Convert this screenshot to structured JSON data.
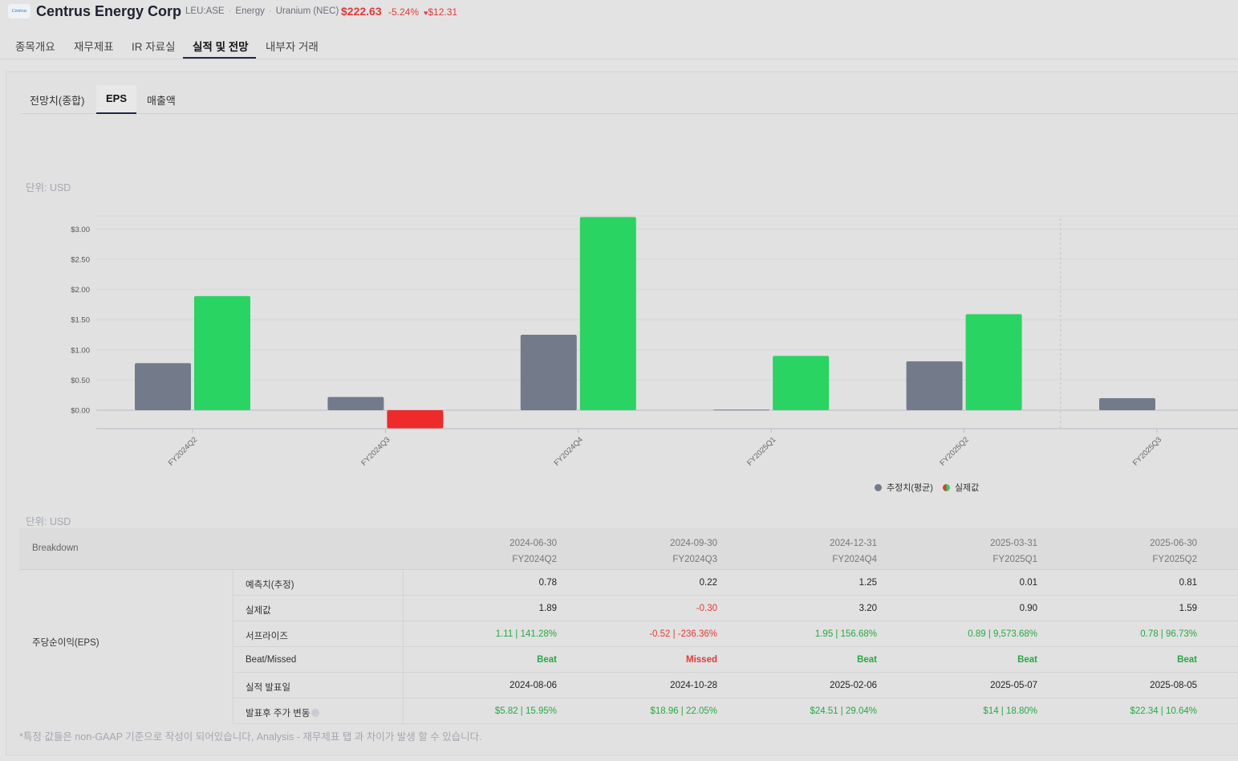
{
  "header": {
    "logo_text": "Centrus",
    "company": "Centrus Energy Corp",
    "ticker": "LEU:ASE",
    "sector": "Energy",
    "industry": "Uranium (NEC)",
    "price": "$222.63",
    "change_pct": "-5.24%",
    "change_amt": "$12.31",
    "change_arrow": "♥",
    "price_color": "#e53935"
  },
  "main_tabs": [
    {
      "label": "종목개요"
    },
    {
      "label": "재무제표"
    },
    {
      "label": "IR 자료실"
    },
    {
      "label": "실적 및 전망"
    },
    {
      "label": "내부자 거래"
    }
  ],
  "sub_tabs": [
    {
      "label": "전망치(종합)"
    },
    {
      "label": "EPS"
    },
    {
      "label": "매출액"
    }
  ],
  "chart_unit": "단위: USD",
  "table_unit": "단위: USD",
  "chart_data": {
    "type": "bar",
    "categories": [
      "FY2024Q2",
      "FY2024Q3",
      "FY2024Q4",
      "FY2025Q1",
      "FY2025Q2",
      "FY2025Q3"
    ],
    "series": [
      {
        "name": "추정치(평균)",
        "values": [
          0.78,
          0.22,
          1.25,
          0.01,
          0.81,
          0.2
        ],
        "color": "#737a8a"
      },
      {
        "name": "실제값",
        "values": [
          1.89,
          -0.3,
          3.2,
          0.9,
          1.59,
          null
        ],
        "color_positive": "#29d462",
        "color_negative": "#ee2a2a"
      }
    ],
    "y_ticks": [
      "$0.00",
      "$0.50",
      "$1.00",
      "$1.50",
      "$2.00",
      "$2.50",
      "$3.00"
    ],
    "ylim": [
      -0.3,
      3.2
    ],
    "grid": true,
    "legend_position": "bottom-right"
  },
  "legend": {
    "estimate": "추정치(평균)",
    "actual": "실제값"
  },
  "table": {
    "breakdown_label": "Breakdown",
    "columns": [
      {
        "date": "2024-06-30",
        "quarter": "FY2024Q2"
      },
      {
        "date": "2024-09-30",
        "quarter": "FY2024Q3"
      },
      {
        "date": "2024-12-31",
        "quarter": "FY2024Q4"
      },
      {
        "date": "2025-03-31",
        "quarter": "FY2025Q1"
      },
      {
        "date": "2025-06-30",
        "quarter": "FY2025Q2"
      }
    ],
    "group_label": "주당순이익(EPS)",
    "rows": [
      {
        "label": "예측치(추정)",
        "cells": [
          "0.78",
          "0.22",
          "1.25",
          "0.01",
          "0.81"
        ]
      },
      {
        "label": "실제값",
        "cells": [
          "1.89",
          "-0.30",
          "3.20",
          "0.90",
          "1.59"
        ]
      },
      {
        "label": "서프라이즈",
        "cells": [
          "1.11 | 141.28%",
          "-0.52 | -236.36%",
          "1.95 | 156.68%",
          "0.89 | 9,573.68%",
          "0.78 | 96.73%"
        ]
      },
      {
        "label": "Beat/Missed",
        "cells": [
          "Beat",
          "Missed",
          "Beat",
          "Beat",
          "Beat"
        ]
      },
      {
        "label": "실적 발표일",
        "cells": [
          "2024-08-06",
          "2024-10-28",
          "2025-02-06",
          "2025-05-07",
          "2025-08-05"
        ]
      },
      {
        "label": "발표후 주가 변동",
        "cells": [
          "$5.82 | 15.95%",
          "$18.96 | 22.05%",
          "$24.51 | 29.04%",
          "$14 | 18.80%",
          "$22.34 | 10.64%"
        ]
      }
    ]
  },
  "footnote": "*특정 값들은 non-GAAP 기준으로 작성이 되어있습니다, Analysis - 재무제표 탭 과 차이가 발생 할 수 있습니다."
}
